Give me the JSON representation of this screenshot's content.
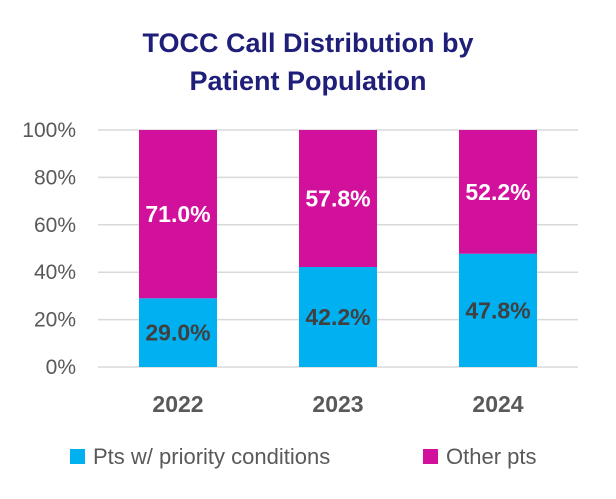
{
  "chart_data": {
    "type": "bar",
    "stacked": true,
    "title": "TOCC Call Distribution by Patient Population",
    "title_lines": [
      "TOCC Call Distribution by",
      "Patient Population"
    ],
    "categories": [
      "2022",
      "2023",
      "2024"
    ],
    "series": [
      {
        "name": "Pts w/ priority conditions",
        "values": [
          29.0,
          42.2,
          47.8
        ],
        "labels": [
          "29.0%",
          "42.2%",
          "47.8%"
        ],
        "color": "#00B0F0",
        "label_color": "#404040"
      },
      {
        "name": "Other pts",
        "values": [
          71.0,
          57.8,
          52.2
        ],
        "labels": [
          "71.0%",
          "57.8%",
          "52.2%"
        ],
        "color": "#D1109B",
        "label_color": "#FFFFFF"
      }
    ],
    "ylim": [
      0,
      100
    ],
    "yticks": [
      0,
      20,
      40,
      60,
      80,
      100
    ],
    "ytick_labels": [
      "0%",
      "20%",
      "40%",
      "60%",
      "80%",
      "100%"
    ],
    "xlabel": "",
    "ylabel": "",
    "grid": true,
    "legend_position": "bottom",
    "title_color": "#1F1F7A",
    "axis_text_color": "#595959",
    "grid_color": "#D9D9D9"
  }
}
